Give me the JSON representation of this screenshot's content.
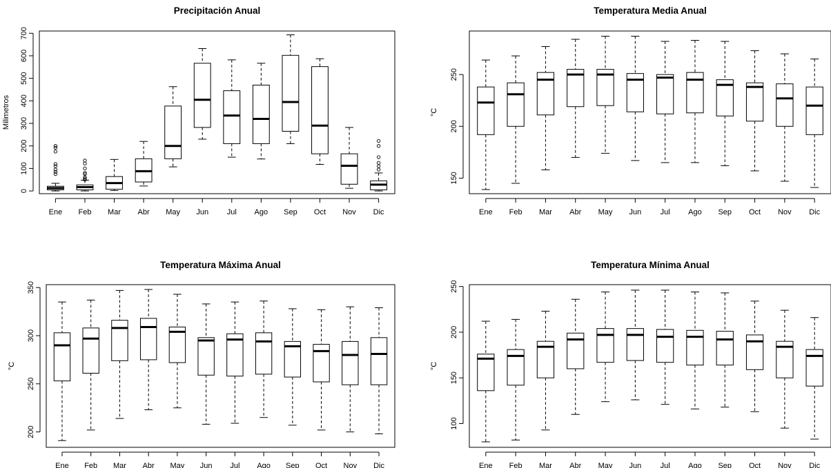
{
  "chart_data": [
    {
      "type": "boxplot",
      "title": "Precipitación Anual",
      "xlabel": "",
      "ylabel": "Milimetros",
      "categories": [
        "Ene",
        "Feb",
        "Mar",
        "Abr",
        "May",
        "Jun",
        "Jul",
        "Ago",
        "Sep",
        "Oct",
        "Nov",
        "Dic"
      ],
      "yticks": [
        0,
        100,
        200,
        300,
        400,
        500,
        600,
        700
      ],
      "ylim": [
        -12,
        710
      ],
      "boxes": [
        {
          "min": 0,
          "q1": 5,
          "median": 13,
          "q3": 21,
          "max": 34,
          "outliers": [
            75,
            85,
            95,
            110,
            120,
            175,
            192,
            200
          ]
        },
        {
          "min": 0,
          "q1": 5,
          "median": 17,
          "q3": 27,
          "max": 48,
          "outliers": [
            50,
            55,
            60,
            75,
            80,
            100,
            122,
            135
          ]
        },
        {
          "min": 2,
          "q1": 8,
          "median": 35,
          "q3": 64,
          "max": 140,
          "outliers": []
        },
        {
          "min": 22,
          "q1": 40,
          "median": 88,
          "q3": 143,
          "max": 220,
          "outliers": []
        },
        {
          "min": 107,
          "q1": 143,
          "median": 200,
          "q3": 377,
          "max": 463,
          "outliers": []
        },
        {
          "min": 230,
          "q1": 282,
          "median": 405,
          "q3": 567,
          "max": 632,
          "outliers": []
        },
        {
          "min": 150,
          "q1": 210,
          "median": 335,
          "q3": 445,
          "max": 582,
          "outliers": []
        },
        {
          "min": 142,
          "q1": 210,
          "median": 320,
          "q3": 470,
          "max": 567,
          "outliers": []
        },
        {
          "min": 210,
          "q1": 265,
          "median": 395,
          "q3": 602,
          "max": 693,
          "outliers": []
        },
        {
          "min": 118,
          "q1": 165,
          "median": 290,
          "q3": 552,
          "max": 587,
          "outliers": []
        },
        {
          "min": 12,
          "q1": 30,
          "median": 112,
          "q3": 165,
          "max": 282,
          "outliers": []
        },
        {
          "min": 0,
          "q1": 5,
          "median": 28,
          "q3": 45,
          "max": 80,
          "outliers": [
            95,
            110,
            125,
            150,
            200,
            222
          ]
        }
      ]
    },
    {
      "type": "boxplot",
      "title": "Temperatura Media Anual",
      "xlabel": "",
      "ylabel": "°C",
      "categories": [
        "Ene",
        "Feb",
        "Mar",
        "Abr",
        "May",
        "Jun",
        "Jul",
        "Ago",
        "Sep",
        "Oct",
        "Nov",
        "Dic"
      ],
      "yticks": [
        150,
        200,
        250
      ],
      "ylim": [
        135,
        292
      ],
      "boxes": [
        {
          "min": 139,
          "q1": 192,
          "median": 223,
          "q3": 238,
          "max": 264,
          "outliers": []
        },
        {
          "min": 145,
          "q1": 200,
          "median": 231,
          "q3": 242,
          "max": 268,
          "outliers": []
        },
        {
          "min": 158,
          "q1": 211,
          "median": 245,
          "q3": 252,
          "max": 277,
          "outliers": []
        },
        {
          "min": 170,
          "q1": 219,
          "median": 250,
          "q3": 255,
          "max": 284,
          "outliers": []
        },
        {
          "min": 174,
          "q1": 220,
          "median": 250,
          "q3": 255,
          "max": 287,
          "outliers": []
        },
        {
          "min": 167,
          "q1": 214,
          "median": 245,
          "q3": 251,
          "max": 287,
          "outliers": []
        },
        {
          "min": 165,
          "q1": 212,
          "median": 247,
          "q3": 250,
          "max": 282,
          "outliers": []
        },
        {
          "min": 165,
          "q1": 213,
          "median": 245,
          "q3": 252,
          "max": 283,
          "outliers": []
        },
        {
          "min": 162,
          "q1": 210,
          "median": 240,
          "q3": 245,
          "max": 282,
          "outliers": []
        },
        {
          "min": 157,
          "q1": 205,
          "median": 238,
          "q3": 242,
          "max": 273,
          "outliers": []
        },
        {
          "min": 147,
          "q1": 200,
          "median": 227,
          "q3": 241,
          "max": 270,
          "outliers": []
        },
        {
          "min": 141,
          "q1": 192,
          "median": 220,
          "q3": 238,
          "max": 265,
          "outliers": []
        }
      ]
    },
    {
      "type": "boxplot",
      "title": "Temperatura Máxima Anual",
      "xlabel": "",
      "ylabel": "°C",
      "categories": [
        "Ene",
        "Feb",
        "Mar",
        "Abr",
        "May",
        "Jun",
        "Jul",
        "Ago",
        "Sep",
        "Oct",
        "Nov",
        "Dic"
      ],
      "yticks": [
        200,
        250,
        300,
        350
      ],
      "ylim": [
        184,
        353
      ],
      "boxes": [
        {
          "min": 191,
          "q1": 253,
          "median": 290,
          "q3": 303,
          "max": 335,
          "outliers": []
        },
        {
          "min": 202,
          "q1": 261,
          "median": 297,
          "q3": 308,
          "max": 337,
          "outliers": []
        },
        {
          "min": 214,
          "q1": 274,
          "median": 308,
          "q3": 316,
          "max": 347,
          "outliers": []
        },
        {
          "min": 223,
          "q1": 275,
          "median": 309,
          "q3": 318,
          "max": 348,
          "outliers": []
        },
        {
          "min": 225,
          "q1": 272,
          "median": 304,
          "q3": 309,
          "max": 343,
          "outliers": []
        },
        {
          "min": 208,
          "q1": 259,
          "median": 295,
          "q3": 298,
          "max": 333,
          "outliers": []
        },
        {
          "min": 209,
          "q1": 258,
          "median": 296,
          "q3": 302,
          "max": 335,
          "outliers": []
        },
        {
          "min": 215,
          "q1": 260,
          "median": 294,
          "q3": 303,
          "max": 336,
          "outliers": []
        },
        {
          "min": 207,
          "q1": 257,
          "median": 289,
          "q3": 294,
          "max": 328,
          "outliers": []
        },
        {
          "min": 202,
          "q1": 252,
          "median": 284,
          "q3": 291,
          "max": 327,
          "outliers": []
        },
        {
          "min": 200,
          "q1": 249,
          "median": 280,
          "q3": 294,
          "max": 330,
          "outliers": []
        },
        {
          "min": 198,
          "q1": 249,
          "median": 281,
          "q3": 298,
          "max": 329,
          "outliers": []
        }
      ]
    },
    {
      "type": "boxplot",
      "title": "Temperatura Mínima Anual",
      "xlabel": "",
      "ylabel": "°C",
      "categories": [
        "Ene",
        "Feb",
        "Mar",
        "Abr",
        "May",
        "Jun",
        "Jul",
        "Ago",
        "Sep",
        "Oct",
        "Nov",
        "Dic"
      ],
      "yticks": [
        100,
        150,
        200,
        250
      ],
      "ylim": [
        74,
        252
      ],
      "boxes": [
        {
          "min": 80,
          "q1": 136,
          "median": 171,
          "q3": 176,
          "max": 212,
          "outliers": []
        },
        {
          "min": 82,
          "q1": 142,
          "median": 174,
          "q3": 181,
          "max": 214,
          "outliers": []
        },
        {
          "min": 93,
          "q1": 150,
          "median": 184,
          "q3": 190,
          "max": 223,
          "outliers": []
        },
        {
          "min": 110,
          "q1": 160,
          "median": 192,
          "q3": 199,
          "max": 236,
          "outliers": []
        },
        {
          "min": 124,
          "q1": 167,
          "median": 197,
          "q3": 204,
          "max": 244,
          "outliers": []
        },
        {
          "min": 126,
          "q1": 169,
          "median": 197,
          "q3": 204,
          "max": 246,
          "outliers": []
        },
        {
          "min": 121,
          "q1": 167,
          "median": 195,
          "q3": 203,
          "max": 246,
          "outliers": []
        },
        {
          "min": 116,
          "q1": 164,
          "median": 195,
          "q3": 202,
          "max": 244,
          "outliers": []
        },
        {
          "min": 118,
          "q1": 164,
          "median": 192,
          "q3": 201,
          "max": 243,
          "outliers": []
        },
        {
          "min": 113,
          "q1": 159,
          "median": 190,
          "q3": 197,
          "max": 234,
          "outliers": []
        },
        {
          "min": 95,
          "q1": 150,
          "median": 184,
          "q3": 190,
          "max": 224,
          "outliers": []
        },
        {
          "min": 83,
          "q1": 141,
          "median": 174,
          "q3": 181,
          "max": 216,
          "outliers": []
        }
      ]
    }
  ]
}
